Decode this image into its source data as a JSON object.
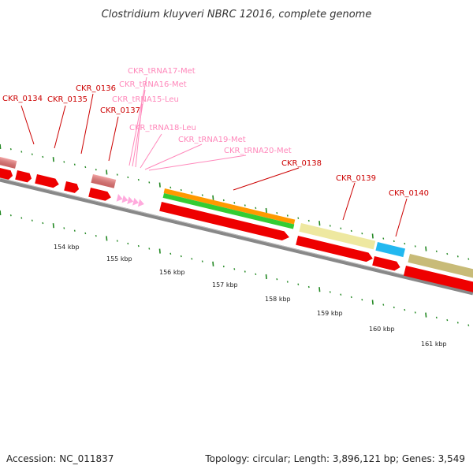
{
  "title": "Clostridium kluyveri NBRC 12016, complete genome",
  "footer": {
    "accession": "Accession: NC_011837",
    "summary": "Topology: circular; Length: 3,896,121 bp; Genes: 3,549"
  },
  "colors": {
    "cds": "#ff0000",
    "trna": "#ffaadd",
    "orange": "#ff9900",
    "green": "#33cc33",
    "khaki": "#eee8a0",
    "blue": "#22b8f0",
    "olive": "#c8bb78",
    "pink_block": "#ee7777",
    "label_red": "#cc0000",
    "label_pink": "#ff88bb",
    "tick": "#228822",
    "backbone": "#888888"
  },
  "gene_labels": [
    {
      "text": "CKR_0134",
      "type": "cds"
    },
    {
      "text": "CKR_0135",
      "type": "cds"
    },
    {
      "text": "CKR_0136",
      "type": "cds"
    },
    {
      "text": "CKR_0137",
      "type": "cds"
    },
    {
      "text": "CKR_tRNA17-Met",
      "type": "trna"
    },
    {
      "text": "CKR_tRNA16-Met",
      "type": "trna"
    },
    {
      "text": "CKR_tRNA15-Leu",
      "type": "trna"
    },
    {
      "text": "CKR_tRNA18-Leu",
      "type": "trna"
    },
    {
      "text": "CKR_tRNA19-Met",
      "type": "trna"
    },
    {
      "text": "CKR_tRNA20-Met",
      "type": "trna"
    },
    {
      "text": "CKR_0138",
      "type": "cds"
    },
    {
      "text": "CKR_0139",
      "type": "cds"
    },
    {
      "text": "CKR_0140",
      "type": "cds"
    }
  ],
  "kbp_labels": [
    "154 kbp",
    "155 kbp",
    "156 kbp",
    "157 kbp",
    "158 kbp",
    "159 kbp",
    "160 kbp",
    "161 kbp"
  ]
}
